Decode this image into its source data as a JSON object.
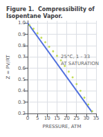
{
  "chart_data": {
    "type": "scatter",
    "title": "Figure 1.  Compressibility of Isopentane Vapor.",
    "xlabel": "PRESSURE, ATM",
    "ylabel": "Z = PV/RT",
    "xlim": [
      0,
      35
    ],
    "ylim": [
      0.2,
      1.02
    ],
    "xticks": [
      0,
      5,
      10,
      15,
      20,
      25,
      30,
      35
    ],
    "yticks": [
      0.2,
      0.3,
      0.4,
      0.5,
      0.6,
      0.7,
      0.8,
      0.9,
      {
        "value": 1.0,
        "label": "1.0"
      }
    ],
    "grid": true,
    "series": [
      {
        "type": "line",
        "x": [
          0,
          33
        ],
        "values": [
          1.0,
          0.21
        ]
      },
      {
        "type": "scatter",
        "marker": "circle",
        "x": [
          1,
          3,
          5,
          7,
          9,
          11,
          13,
          15,
          17,
          19,
          21,
          23,
          25,
          27,
          29,
          31,
          33
        ],
        "values": [
          0.98,
          0.95,
          0.91,
          0.87,
          0.83,
          0.79,
          0.75,
          0.71,
          0.67,
          0.62,
          0.57,
          0.52,
          0.46,
          0.4,
          0.34,
          0.28,
          0.22
        ]
      }
    ],
    "annotations": [
      {
        "text": "25°C, 1 - 33",
        "x": 17,
        "y": 0.68
      },
      {
        "text": "AT SATURATION",
        "x": 17,
        "y": 0.66
      }
    ]
  }
}
